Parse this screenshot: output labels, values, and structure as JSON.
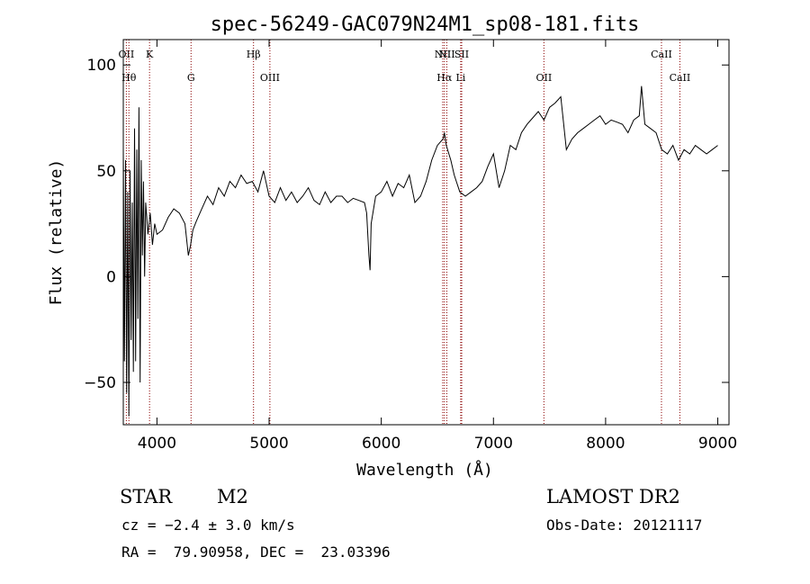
{
  "chart_data": {
    "type": "line",
    "title": "spec-56249-GAC079N24M1_sp08-181.fits",
    "xlabel": "Wavelength (Å)",
    "ylabel": "Flux (relative)",
    "xlim": [
      3700,
      9100
    ],
    "ylim": [
      -70,
      112
    ],
    "xticks": [
      4000,
      5000,
      6000,
      7000,
      8000,
      9000
    ],
    "yticks": [
      -50,
      0,
      50,
      100
    ],
    "series": [
      {
        "x": [
          3700,
          3710,
          3720,
          3730,
          3740,
          3750,
          3760,
          3770,
          3780,
          3790,
          3800,
          3810,
          3820,
          3830,
          3840,
          3850,
          3860,
          3870,
          3880,
          3890,
          3900,
          3920,
          3940,
          3960,
          3980,
          4000,
          4050,
          4100,
          4150,
          4200,
          4250,
          4280,
          4300,
          4320,
          4350,
          4400,
          4450,
          4500,
          4550,
          4600,
          4650,
          4700,
          4750,
          4800,
          4850,
          4900,
          4950,
          5000,
          5050,
          5100,
          5150,
          5200,
          5250,
          5300,
          5350,
          5400,
          5450,
          5500,
          5550,
          5600,
          5650,
          5700,
          5750,
          5800,
          5850,
          5870,
          5890,
          5900,
          5910,
          5950,
          6000,
          6050,
          6100,
          6150,
          6200,
          6250,
          6300,
          6350,
          6400,
          6450,
          6500,
          6550,
          6563,
          6580,
          6620,
          6650,
          6700,
          6750,
          6800,
          6850,
          6900,
          6950,
          7000,
          7050,
          7100,
          7150,
          7200,
          7250,
          7300,
          7350,
          7400,
          7450,
          7500,
          7550,
          7600,
          7650,
          7700,
          7750,
          7800,
          7850,
          7900,
          7950,
          8000,
          8050,
          8100,
          8150,
          8200,
          8250,
          8300,
          8320,
          8350,
          8400,
          8450,
          8500,
          8550,
          8600,
          8650,
          8700,
          8750,
          8800,
          8850,
          8900,
          8950,
          9000
        ],
        "y": [
          60,
          -40,
          55,
          -55,
          40,
          -66,
          50,
          -30,
          35,
          -45,
          70,
          -40,
          60,
          -20,
          80,
          -50,
          55,
          10,
          45,
          0,
          35,
          20,
          30,
          15,
          25,
          20,
          22,
          28,
          32,
          30,
          25,
          10,
          15,
          22,
          26,
          32,
          38,
          34,
          42,
          38,
          45,
          42,
          48,
          44,
          45,
          40,
          50,
          38,
          35,
          42,
          36,
          40,
          35,
          38,
          42,
          36,
          34,
          40,
          35,
          38,
          38,
          35,
          37,
          36,
          35,
          30,
          10,
          3,
          25,
          38,
          40,
          45,
          38,
          44,
          42,
          48,
          35,
          38,
          45,
          55,
          62,
          65,
          68,
          62,
          55,
          48,
          40,
          38,
          40,
          42,
          45,
          52,
          58,
          42,
          50,
          62,
          60,
          68,
          72,
          75,
          78,
          74,
          80,
          82,
          85,
          60,
          65,
          68,
          70,
          72,
          74,
          76,
          72,
          74,
          73,
          72,
          68,
          74,
          76,
          90,
          72,
          70,
          68,
          60,
          58,
          62,
          55,
          60,
          58,
          62,
          60,
          58,
          60,
          62
        ]
      }
    ],
    "lines": [
      {
        "x": 3727,
        "label": "OII"
      },
      {
        "x": 3750,
        "label": "Hθ"
      },
      {
        "x": 3934,
        "label": "K"
      },
      {
        "x": 4304,
        "label": "G"
      },
      {
        "x": 4861,
        "label": "Hβ"
      },
      {
        "x": 5007,
        "label": "OIII"
      },
      {
        "x": 6548,
        "label": "NII"
      },
      {
        "x": 6563,
        "label": "Hα"
      },
      {
        "x": 6584,
        "label": "NII"
      },
      {
        "x": 6708,
        "label": "Li"
      },
      {
        "x": 6717,
        "label": "SII"
      },
      {
        "x": 7450,
        "label": "OII"
      },
      {
        "x": 8498,
        "label": "CaII"
      },
      {
        "x": 8662,
        "label": "CaII"
      }
    ]
  },
  "info": {
    "object_class": "STAR",
    "subclass": "M2",
    "survey": "LAMOST DR2",
    "velocity": "cz = −2.4 ± 3.0 km/s",
    "obs_date": "Obs-Date: 20121117",
    "coords": "RA =  79.90958, DEC =  23.03396"
  }
}
